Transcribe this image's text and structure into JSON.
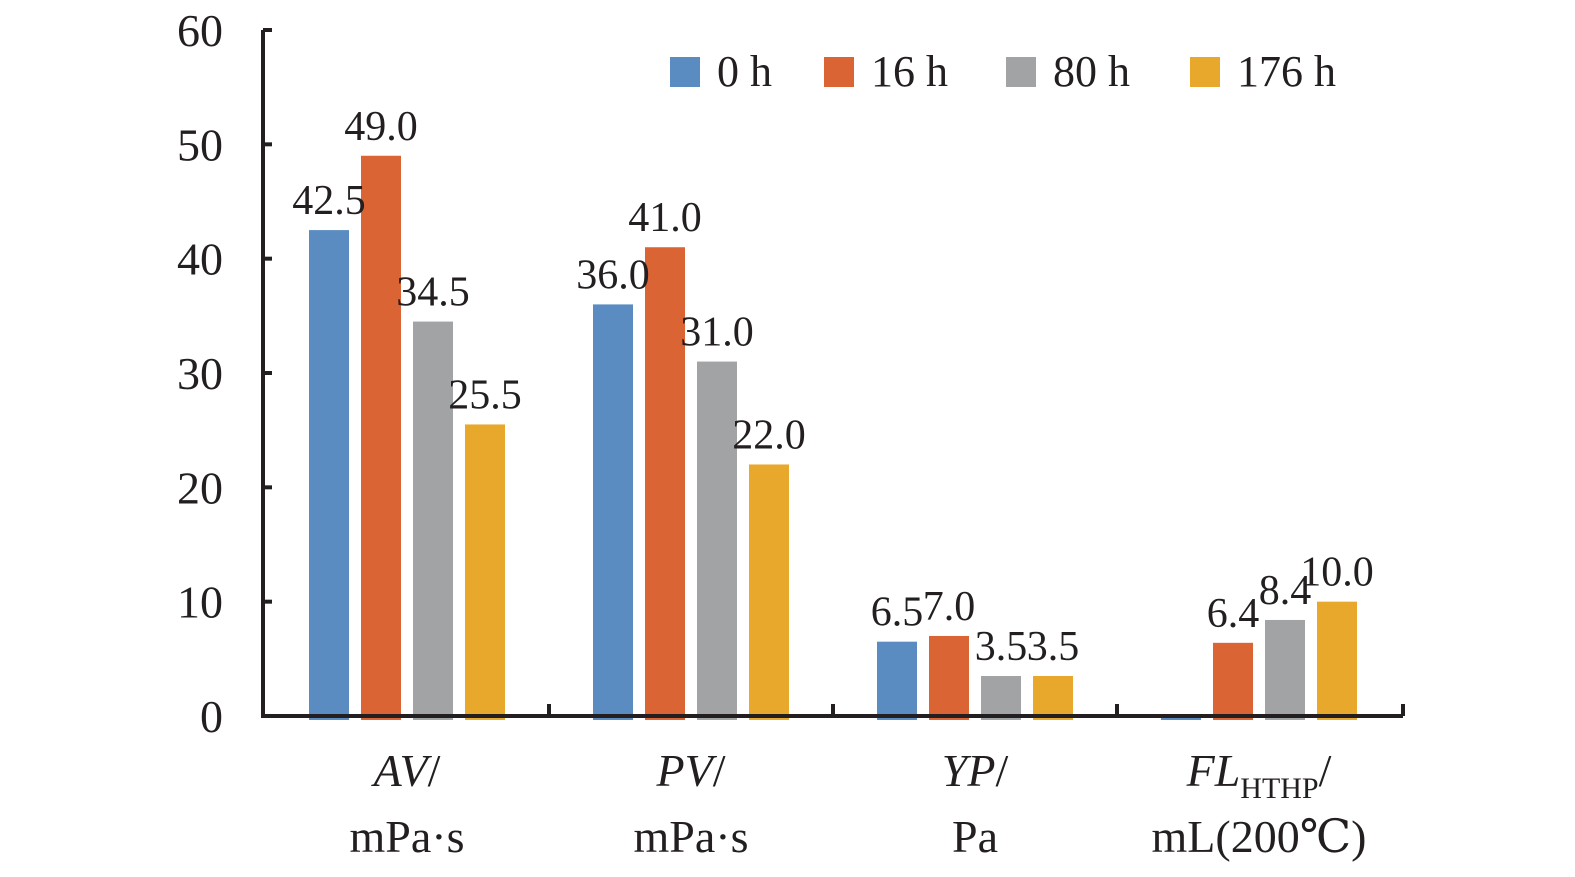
{
  "chart_data": {
    "type": "bar",
    "categories": [
      {
        "name": "AV",
        "unit": "/",
        "line2": "mPa·s",
        "sub": ""
      },
      {
        "name": "PV",
        "unit": "/",
        "line2": "mPa·s",
        "sub": ""
      },
      {
        "name": "YP",
        "unit": "/",
        "line2": "Pa",
        "sub": ""
      },
      {
        "name": "FL",
        "sub": "HTHP",
        "unit": "/",
        "line2": "mL(200℃)"
      }
    ],
    "series": [
      {
        "name": "0 h",
        "color": "#5b8cc1",
        "values": [
          42.5,
          36.0,
          6.5,
          0
        ],
        "labels": [
          "42.5",
          "36.0",
          "6.5",
          ""
        ]
      },
      {
        "name": "16 h",
        "color": "#db6434",
        "values": [
          49.0,
          41.0,
          7.0,
          6.4
        ],
        "labels": [
          "49.0",
          "41.0",
          "7.0",
          "6.4"
        ]
      },
      {
        "name": "80 h",
        "color": "#a2a3a5",
        "values": [
          34.5,
          31.0,
          3.5,
          8.4
        ],
        "labels": [
          "34.5",
          "31.0",
          "3.5",
          "8.4"
        ]
      },
      {
        "name": "176 h",
        "color": "#e8a82b",
        "values": [
          25.5,
          22.0,
          3.5,
          10.0
        ],
        "labels": [
          "25.5",
          "22.0",
          "3.5",
          "10.0"
        ]
      }
    ],
    "ylim": [
      0,
      60
    ],
    "yticks": [
      "0",
      "10",
      "20",
      "30",
      "40",
      "50",
      "60"
    ],
    "grid": false,
    "legend_position": "top-right"
  }
}
